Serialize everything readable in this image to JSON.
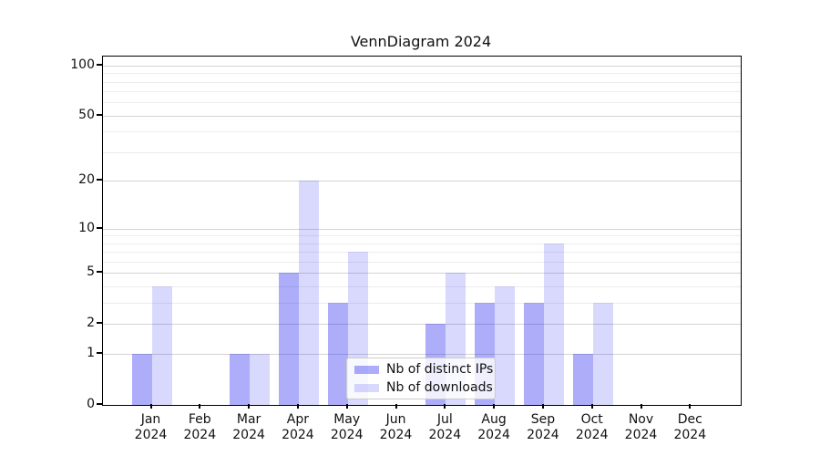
{
  "title": "VennDiagram 2024",
  "chart_data": {
    "type": "bar",
    "title": "VennDiagram 2024",
    "categories": [
      "Jan",
      "Feb",
      "Mar",
      "Apr",
      "May",
      "Jun",
      "Jul",
      "Aug",
      "Sep",
      "Oct",
      "Nov",
      "Dec"
    ],
    "category_year": "2024",
    "series": [
      {
        "name": "Nb of distinct IPs",
        "color": "#1414f059",
        "values": [
          1,
          0,
          1,
          5,
          3,
          0,
          2,
          3,
          3,
          1,
          0,
          0
        ]
      },
      {
        "name": "Nb of downloads",
        "color": "#1414f029",
        "values": [
          4,
          0,
          1,
          20,
          7,
          0,
          5,
          4,
          8,
          3,
          0,
          0
        ]
      }
    ],
    "xlabel": "",
    "ylabel": "",
    "yscale": "log1p",
    "ylim": [
      0,
      113
    ],
    "yticks": [
      0,
      1,
      2,
      5,
      10,
      20,
      50,
      100
    ],
    "yticks_minor": [
      3,
      4,
      6,
      7,
      8,
      9,
      30,
      40,
      60,
      70,
      80,
      90
    ],
    "grid": "both",
    "legend_position": "lower center"
  },
  "colors": {
    "bar_ips": "#1414f059",
    "bar_downloads": "#1414f029",
    "grid_major": "#d4d4d4",
    "grid_minor": "#ececec",
    "axis": "#000000",
    "text": "#111111",
    "legend_border": "#cccccc"
  }
}
